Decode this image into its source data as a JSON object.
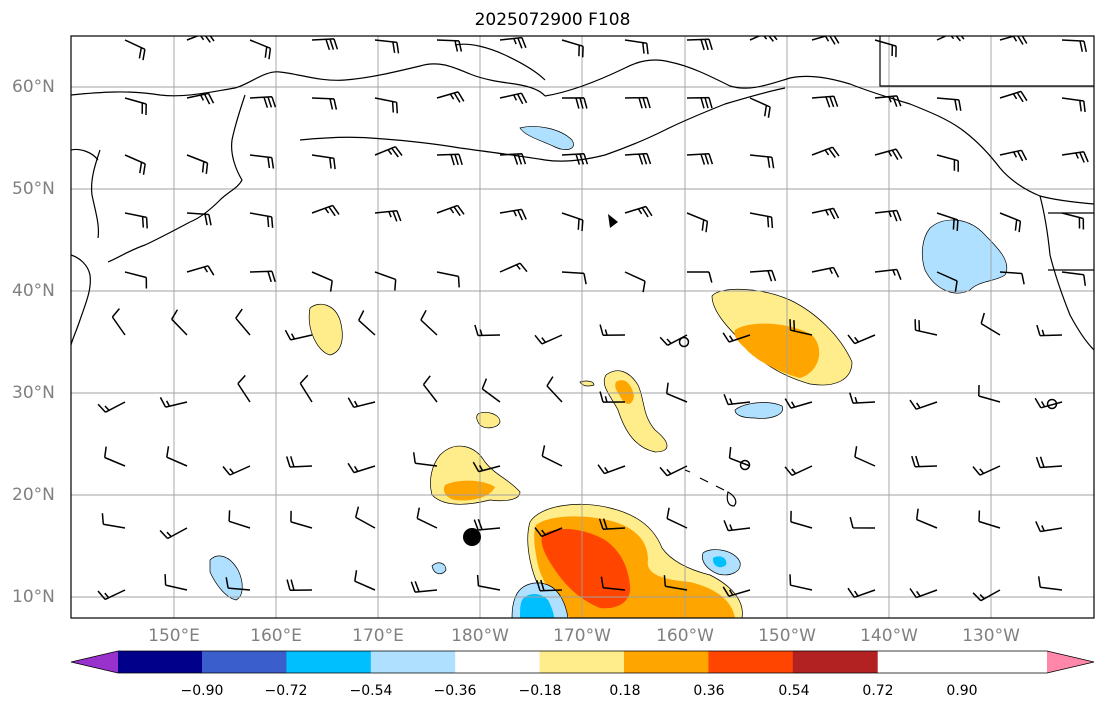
{
  "title": "2025072900 F108",
  "lat_labels": [
    "60°N",
    "50°N",
    "40°N",
    "30°N",
    "20°N",
    "10°N"
  ],
  "lon_labels": [
    "150°E",
    "160°E",
    "170°E",
    "180°W",
    "170°W",
    "160°W",
    "150°W",
    "140°W",
    "130°W"
  ],
  "colorbar": {
    "ticks": [
      "−0.90",
      "−0.72",
      "−0.54",
      "−0.36",
      "−0.18",
      "0.18",
      "0.36",
      "0.54",
      "0.72",
      "0.90"
    ],
    "colors": [
      "#9932CC",
      "#00008B",
      "#3A5FCD",
      "#00BFFF",
      "#B0E0FF",
      "#FFFFFF",
      "#FFEC8B",
      "#FFA500",
      "#FF4500",
      "#B22222",
      "#FF88AA"
    ]
  },
  "colors": {
    "coastline": "#000000",
    "grid": "#a0a0a0",
    "label": "#808080"
  }
}
